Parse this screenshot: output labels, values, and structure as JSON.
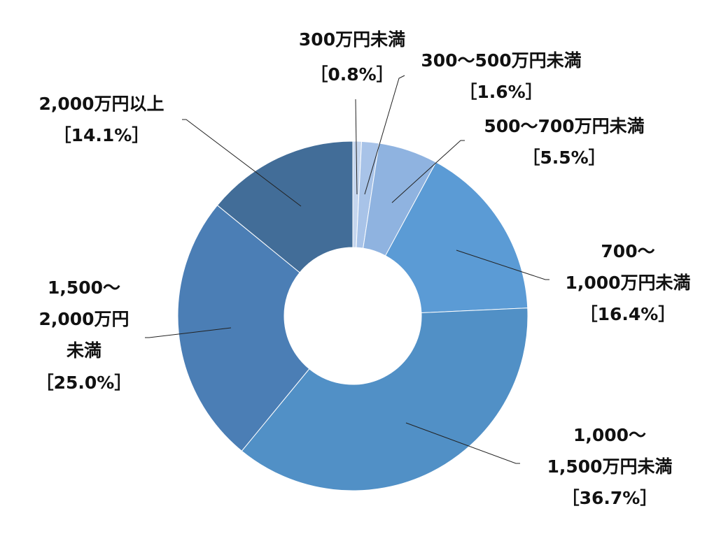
{
  "chart_data": {
    "type": "donut",
    "title": "",
    "legend": "none",
    "slices": [
      {
        "label": [
          "300万円未満"
        ],
        "value_text": "［0.8%］",
        "value": 0.8,
        "color": "#c5d6ee"
      },
      {
        "label": [
          "300～500万円未満"
        ],
        "value_text": "［1.6%］",
        "value": 1.6,
        "color": "#a8c3e8"
      },
      {
        "label": [
          "500～700万円未満"
        ],
        "value_text": "［5.5%］",
        "value": 5.5,
        "color": "#8fb3e0"
      },
      {
        "label": [
          "700～",
          "1,000万円未満"
        ],
        "value_text": "［16.4%］",
        "value": 16.4,
        "color": "#5b9bd5"
      },
      {
        "label": [
          "1,000～",
          "1,500万円未満"
        ],
        "value_text": "［36.7%］",
        "value": 36.7,
        "color": "#5190c6"
      },
      {
        "label": [
          "1,500～",
          "2,000万円",
          "未満"
        ],
        "value_text": "［25.0%］",
        "value": 25.0,
        "color": "#4b7eb5"
      },
      {
        "label": [
          "2,000万円以上"
        ],
        "value_text": "［14.1%］",
        "value": 14.1,
        "color": "#426d98"
      }
    ]
  }
}
